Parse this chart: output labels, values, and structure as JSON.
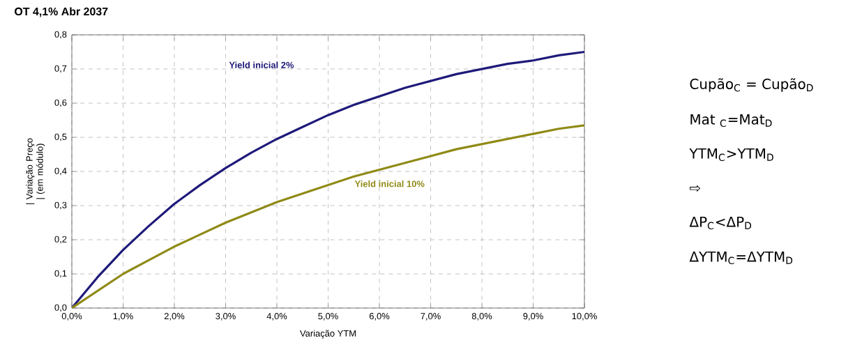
{
  "chart_data": {
    "type": "line",
    "title": "OT 4,1% Abr 2037",
    "xlabel": "Variação YTM",
    "ylabel": "| Variação Preço | (em módulo)",
    "x": [
      0,
      0.5,
      1,
      1.5,
      2,
      2.5,
      3,
      3.5,
      4,
      4.5,
      5,
      5.5,
      6,
      6.5,
      7,
      7.5,
      8,
      8.5,
      9,
      9.5,
      10
    ],
    "series": [
      {
        "color": "#1f1a7a",
        "values": [
          0,
          0.09,
          0.17,
          0.24,
          0.305,
          0.36,
          0.41,
          0.455,
          0.495,
          0.53,
          0.565,
          0.595,
          0.62,
          0.645,
          0.665,
          0.685,
          0.7,
          0.715,
          0.725,
          0.74,
          0.75
        ]
      },
      {
        "color": "#8f8a16",
        "values": [
          0,
          0.05,
          0.1,
          0.14,
          0.18,
          0.215,
          0.25,
          0.28,
          0.31,
          0.335,
          0.36,
          0.385,
          0.405,
          0.425,
          0.445,
          0.465,
          0.48,
          0.495,
          0.51,
          0.525,
          0.535
        ]
      }
    ],
    "xlim": [
      0,
      10
    ],
    "ylim": [
      0,
      0.8
    ],
    "xticks": [
      {
        "value": 0,
        "label": "0,0%"
      },
      {
        "value": 1,
        "label": "1,0%"
      },
      {
        "value": 2,
        "label": "2,0%"
      },
      {
        "value": 3,
        "label": "3,0%"
      },
      {
        "value": 4,
        "label": "4,0%"
      },
      {
        "value": 5,
        "label": "5,0%"
      },
      {
        "value": 6,
        "label": "6,0%"
      },
      {
        "value": 7,
        "label": "7,0%"
      },
      {
        "value": 8,
        "label": "8,0%"
      },
      {
        "value": 9,
        "label": "9,0%"
      },
      {
        "value": 10,
        "label": "10,0%"
      }
    ],
    "yticks": [
      {
        "value": 0,
        "label": "0,0"
      },
      {
        "value": 0.1,
        "label": "0,1"
      },
      {
        "value": 0.2,
        "label": "0,2"
      },
      {
        "value": 0.3,
        "label": "0,3"
      },
      {
        "value": 0.4,
        "label": "0,4"
      },
      {
        "value": 0.5,
        "label": "0,5"
      },
      {
        "value": 0.6,
        "label": "0,6"
      },
      {
        "value": 0.7,
        "label": "0,7"
      },
      {
        "value": 0.8,
        "label": "0,8"
      }
    ],
    "grid": true,
    "marker": "none",
    "line_style": "solid",
    "annotations": [
      "Yield inicial 2%",
      "Yield inicial 10%",
      "Cupão$_{C}$ = Cupão$_{D}$",
      "Mat $_{C}$=Mat$_{D}$",
      "YTM$_{C}$>YTM$_{D}$",
      "⇨",
      "ΔP$_{C}$<ΔP$_{D}$",
      "ΔYTM$_{C}$=ΔYTM$_{D}$"
    ]
  }
}
